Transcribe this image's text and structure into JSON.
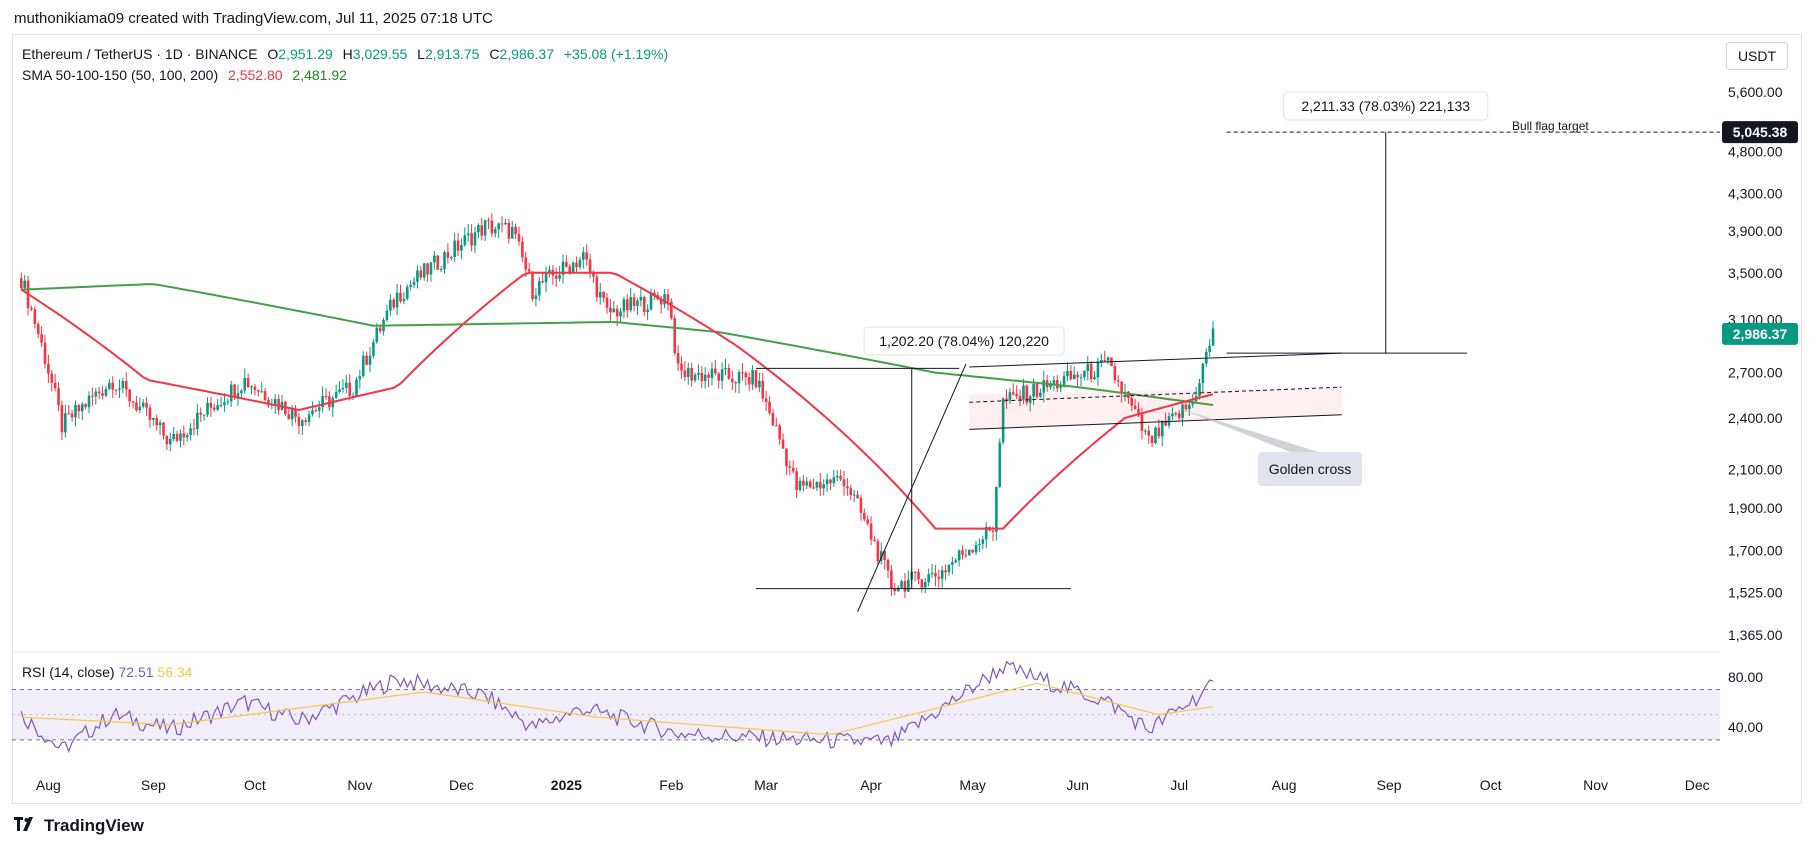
{
  "header": {
    "text": "muthonikiama09 created with TradingView.com, Jul 11, 2025 07:18 UTC"
  },
  "legend": {
    "symbol": "Ethereum / TetherUS · 1D · BINANCE",
    "o_label": "O",
    "o": "2,951.29",
    "h_label": "H",
    "h": "3,029.55",
    "l_label": "L",
    "l": "2,913.75",
    "c_label": "C",
    "c": "2,986.37",
    "change": "+35.08 (+1.19%)",
    "sma_label": "SMA 50-100-150 (50, 100, 200)",
    "sma1": "2,552.80",
    "sma2": "2,481.92"
  },
  "rsi_legend": {
    "label": "RSI (14, close)",
    "v1": "72.51",
    "v2": "56.34"
  },
  "currency": "USDT",
  "footer": {
    "brand": "TradingView",
    "logo_icon": "tradingview-logo-icon"
  },
  "annotations": {
    "bull_flag_target": "Bull flag target",
    "target_measure": "2,211.33 (78.03%) 221,133",
    "pole_measure": "1,202.20 (78.04%) 120,220",
    "golden_cross": "Golden cross",
    "target_price": "5,045.38",
    "last_price": "2,986.37"
  },
  "colors": {
    "up": "#089981",
    "down": "#f23645",
    "sma50": "#f23645",
    "sma200": "#43a047",
    "rsi": "#7e57c2",
    "rsi_ma": "#f7c948"
  },
  "chart_data": {
    "type": "candlestick",
    "title": "Ethereum / TetherUS · 1D · BINANCE",
    "y_axis_ticks": [
      "5,600.00",
      "4,800.00",
      "4,300.00",
      "3,900.00",
      "3,500.00",
      "3,100.00",
      "2,700.00",
      "2,400.00",
      "2,100.00",
      "1,900.00",
      "1,700.00",
      "1,525.00",
      "1,365.00"
    ],
    "y_axis_scale": "log",
    "x_axis_ticks": [
      "Aug",
      "Sep",
      "Oct",
      "Nov",
      "Dec",
      "2025",
      "Feb",
      "Mar",
      "Apr",
      "May",
      "Jun",
      "Jul",
      "Aug",
      "Sep",
      "Oct",
      "Nov",
      "Dec"
    ],
    "price_keypoints": [
      {
        "t": "2024-07-24",
        "v": 3450
      },
      {
        "t": "2024-08-05",
        "v": 2350
      },
      {
        "t": "2024-08-20",
        "v": 2650
      },
      {
        "t": "2024-09-06",
        "v": 2250
      },
      {
        "t": "2024-09-28",
        "v": 2650
      },
      {
        "t": "2024-10-14",
        "v": 2400
      },
      {
        "t": "2024-10-30",
        "v": 2600
      },
      {
        "t": "2024-11-12",
        "v": 3300
      },
      {
        "t": "2024-12-08",
        "v": 3950
      },
      {
        "t": "2024-12-16",
        "v": 3900
      },
      {
        "t": "2024-12-22",
        "v": 3350
      },
      {
        "t": "2025-01-06",
        "v": 3650
      },
      {
        "t": "2025-01-13",
        "v": 3150
      },
      {
        "t": "2025-01-31",
        "v": 3300
      },
      {
        "t": "2025-02-03",
        "v": 2700
      },
      {
        "t": "2025-02-26",
        "v": 2650
      },
      {
        "t": "2025-03-10",
        "v": 2000
      },
      {
        "t": "2025-03-24",
        "v": 2050
      },
      {
        "t": "2025-04-07",
        "v": 1550
      },
      {
        "t": "2025-04-21",
        "v": 1600
      },
      {
        "t": "2025-05-07",
        "v": 1800
      },
      {
        "t": "2025-05-10",
        "v": 2500
      },
      {
        "t": "2025-06-10",
        "v": 2750
      },
      {
        "t": "2025-06-22",
        "v": 2250
      },
      {
        "t": "2025-07-05",
        "v": 2500
      },
      {
        "t": "2025-07-11",
        "v": 2986
      }
    ],
    "sma50_keypoints": [
      {
        "t": "2024-07-24",
        "v": 3350
      },
      {
        "t": "2024-08-30",
        "v": 2650
      },
      {
        "t": "2024-10-14",
        "v": 2450
      },
      {
        "t": "2024-11-12",
        "v": 2600
      },
      {
        "t": "2024-12-20",
        "v": 3500
      },
      {
        "t": "2025-01-15",
        "v": 3500
      },
      {
        "t": "2025-02-20",
        "v": 2900
      },
      {
        "t": "2025-04-20",
        "v": 1800
      },
      {
        "t": "2025-05-10",
        "v": 1800
      },
      {
        "t": "2025-06-15",
        "v": 2400
      },
      {
        "t": "2025-07-11",
        "v": 2552.8
      }
    ],
    "sma200_keypoints": [
      {
        "t": "2024-07-24",
        "v": 3350
      },
      {
        "t": "2024-09-01",
        "v": 3400
      },
      {
        "t": "2024-11-05",
        "v": 3050
      },
      {
        "t": "2025-01-15",
        "v": 3080
      },
      {
        "t": "2025-02-15",
        "v": 3000
      },
      {
        "t": "2025-04-20",
        "v": 2700
      },
      {
        "t": "2025-06-01",
        "v": 2600
      },
      {
        "t": "2025-07-11",
        "v": 2481.92
      }
    ],
    "rsi": {
      "ticks": [
        "80.00",
        "40.00"
      ],
      "upper": 70,
      "lower": 30,
      "rsi_keypoints": [
        {
          "t": "2024-07-24",
          "v": 50
        },
        {
          "t": "2024-08-05",
          "v": 22
        },
        {
          "t": "2024-08-20",
          "v": 50
        },
        {
          "t": "2024-09-06",
          "v": 38
        },
        {
          "t": "2024-09-28",
          "v": 60
        },
        {
          "t": "2024-10-14",
          "v": 45
        },
        {
          "t": "2024-11-12",
          "v": 78
        },
        {
          "t": "2024-12-08",
          "v": 65
        },
        {
          "t": "2024-12-22",
          "v": 40
        },
        {
          "t": "2025-01-06",
          "v": 55
        },
        {
          "t": "2025-02-03",
          "v": 35
        },
        {
          "t": "2025-03-10",
          "v": 30
        },
        {
          "t": "2025-04-07",
          "v": 28
        },
        {
          "t": "2025-05-10",
          "v": 88
        },
        {
          "t": "2025-06-10",
          "v": 60
        },
        {
          "t": "2025-06-22",
          "v": 38
        },
        {
          "t": "2025-07-11",
          "v": 72.51
        }
      ],
      "rsi_ma_keypoints": [
        {
          "t": "2024-07-24",
          "v": 48
        },
        {
          "t": "2024-09-06",
          "v": 42
        },
        {
          "t": "2024-11-20",
          "v": 68
        },
        {
          "t": "2025-01-10",
          "v": 48
        },
        {
          "t": "2025-03-20",
          "v": 34
        },
        {
          "t": "2025-05-20",
          "v": 75
        },
        {
          "t": "2025-06-25",
          "v": 50
        },
        {
          "t": "2025-07-11",
          "v": 56.34
        }
      ]
    }
  }
}
